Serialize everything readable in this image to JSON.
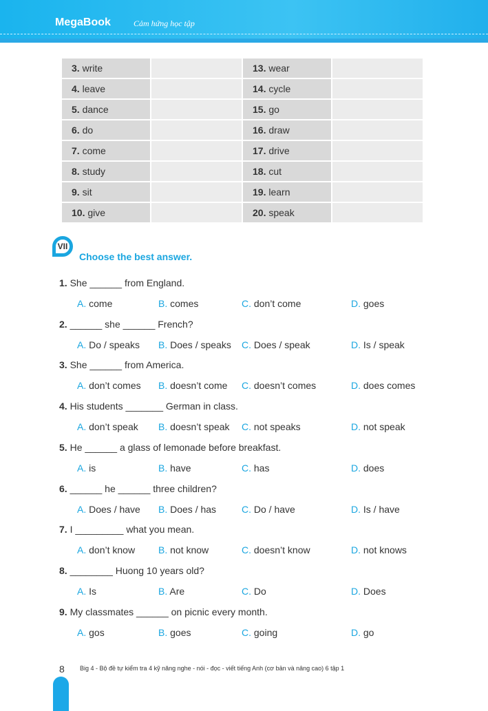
{
  "header": {
    "brand": "MegaBook",
    "tagline": "Cảm hứng học tập"
  },
  "table": {
    "rows": [
      [
        "3.",
        "write",
        "13.",
        "wear"
      ],
      [
        "4.",
        "leave",
        "14.",
        "cycle"
      ],
      [
        "5.",
        "dance",
        "15.",
        "go"
      ],
      [
        "6.",
        "do",
        "16.",
        "draw"
      ],
      [
        "7.",
        "come",
        "17.",
        "drive"
      ],
      [
        "8.",
        "study",
        "18.",
        "cut"
      ],
      [
        "9.",
        "sit",
        "19.",
        "learn"
      ],
      [
        "10.",
        "give",
        "20.",
        "speak"
      ]
    ]
  },
  "section": {
    "number": "VII",
    "title": "Choose the best answer."
  },
  "questions": [
    {
      "n": "1.",
      "text": "She ______ from England.",
      "options": [
        "come",
        "comes",
        "don’t come",
        "goes"
      ]
    },
    {
      "n": "2.",
      "text": "______ she ______ French?",
      "options": [
        "Do / speaks",
        "Does / speaks",
        "Does / speak",
        "Is / speak"
      ]
    },
    {
      "n": "3.",
      "text": "She ______ from America.",
      "options": [
        "don’t comes",
        "doesn’t come",
        "doesn’t comes",
        "does comes"
      ]
    },
    {
      "n": "4.",
      "text": "His students _______ German in class.",
      "options": [
        "don’t speak",
        "doesn’t speak",
        "not speaks",
        "not speak"
      ]
    },
    {
      "n": "5.",
      "text": "He ______ a glass of lemonade before breakfast.",
      "options": [
        "is",
        "have",
        "has",
        "does"
      ]
    },
    {
      "n": "6.",
      "text": "______ he ______ three children?",
      "options": [
        "Does / have",
        "Does / has",
        "Do / have",
        "Is / have"
      ]
    },
    {
      "n": "7.",
      "text": "I _________ what you mean.",
      "options": [
        "don’t know",
        "not know",
        "doesn’t know",
        "not knows"
      ]
    },
    {
      "n": "8.",
      "text": "________ Huong 10 years old?",
      "options": [
        "Is",
        "Are",
        "Do",
        "Does"
      ]
    },
    {
      "n": "9.",
      "text": "My classmates ______ on picnic every month.",
      "options": [
        "gos",
        "goes",
        "going",
        "go"
      ]
    }
  ],
  "option_letters": [
    "A.",
    "B.",
    "C.",
    "D."
  ],
  "footer": {
    "page": "8",
    "text": "Big 4 - Bộ đề tự kiểm tra 4 kỹ năng  nghe - nói - đọc - viết tiếng Anh (cơ bản và nâng cao) 6 tập 1"
  },
  "colors": {
    "accent": "#1aa6e0",
    "header": "#1ab4ee"
  }
}
